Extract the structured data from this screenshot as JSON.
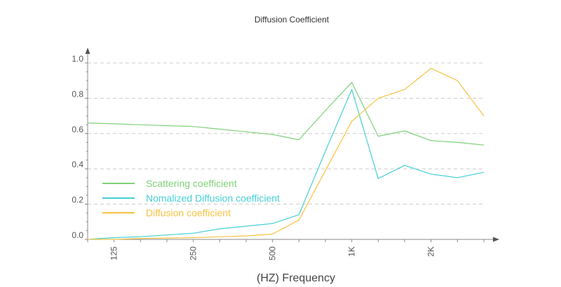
{
  "chart_data": {
    "type": "line",
    "title": "Diffusion Coefficient",
    "xlabel": "(HZ)  Frequency",
    "ylabel": "",
    "ylim": [
      0,
      1.0
    ],
    "yticks": [
      "0.0",
      "0.2",
      "0.4",
      "0.6",
      "0.8",
      "1.0"
    ],
    "x": [
      "100",
      "125",
      "160",
      "200",
      "250",
      "315",
      "400",
      "500",
      "630",
      "800",
      "1K",
      "1.25K",
      "1.6K",
      "2K",
      "2.5K",
      "3.15K"
    ],
    "xtick_labels": [
      "125",
      "250",
      "500",
      "1K",
      "2K"
    ],
    "grid": "horizontal dashed",
    "legend_position": "lower-left",
    "series": [
      {
        "name": "Scattering coefficient",
        "color": "#7fd17a",
        "values": [
          0.66,
          0.655,
          0.65,
          0.645,
          0.64,
          0.625,
          0.61,
          0.595,
          0.565,
          0.73,
          0.89,
          0.585,
          0.615,
          0.56,
          0.55,
          0.535
        ]
      },
      {
        "name": "Nomalized Diffusion coefficient",
        "color": "#45cfd6",
        "values": [
          0.0,
          0.01,
          0.015,
          0.025,
          0.035,
          0.06,
          0.075,
          0.09,
          0.14,
          0.5,
          0.85,
          0.345,
          0.42,
          0.37,
          0.35,
          0.38
        ]
      },
      {
        "name": "Diffusion coefficient",
        "color": "#f5c342",
        "values": [
          0.0,
          0.0,
          0.005,
          0.008,
          0.01,
          0.015,
          0.02,
          0.03,
          0.11,
          0.39,
          0.67,
          0.8,
          0.85,
          0.97,
          0.9,
          0.7
        ]
      }
    ]
  }
}
